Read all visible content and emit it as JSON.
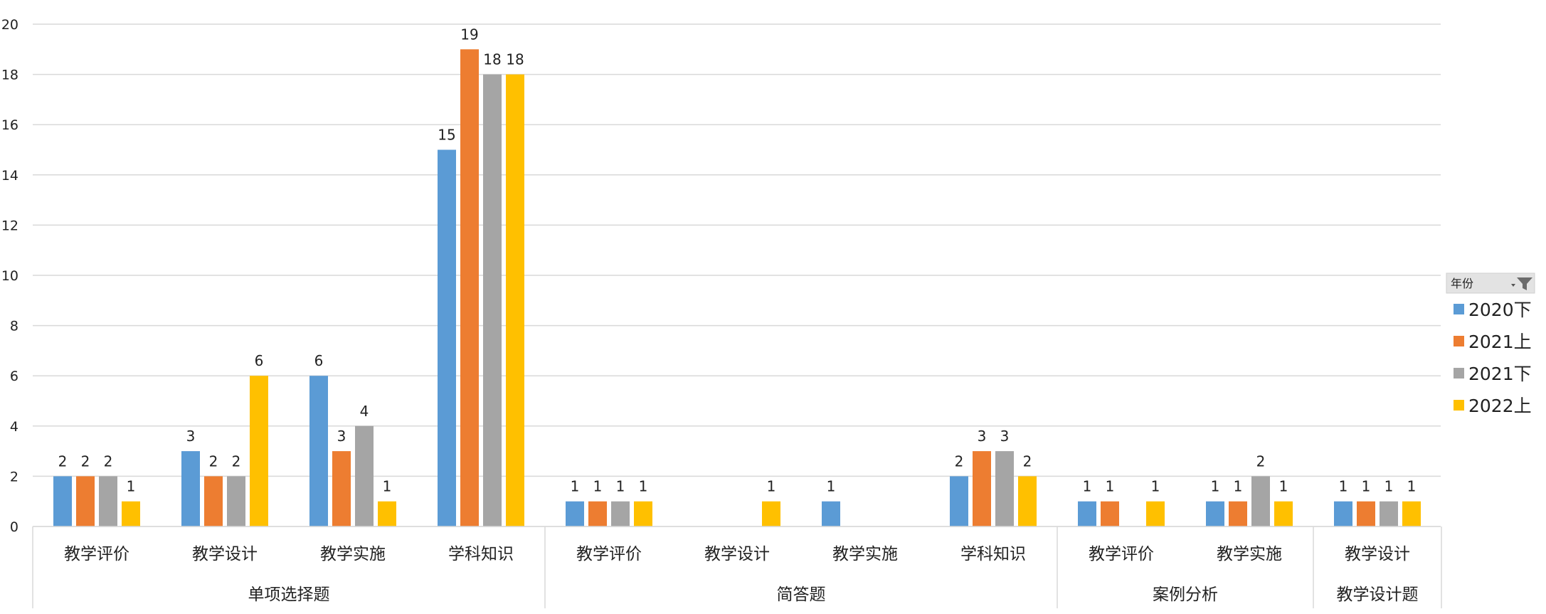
{
  "chart_data": {
    "type": "bar",
    "ylim": [
      0,
      20
    ],
    "yticks": [
      0,
      2,
      4,
      6,
      8,
      10,
      12,
      14,
      16,
      18,
      20
    ],
    "grid": true,
    "legend_position": "right",
    "legend_title": "年份",
    "groups": [
      {
        "name": "单项选择题",
        "categories": [
          "教学评价",
          "教学设计",
          "教学实施",
          "学科知识"
        ]
      },
      {
        "name": "简答题",
        "categories": [
          "教学评价",
          "教学设计",
          "教学实施",
          "学科知识"
        ]
      },
      {
        "name": "案例分析",
        "categories": [
          "教学评价",
          "教学实施"
        ]
      },
      {
        "name": "教学设计题",
        "categories": [
          "教学设计"
        ]
      }
    ],
    "series": [
      {
        "name": "2020下",
        "color": "#5B9BD5",
        "values": [
          2,
          3,
          6,
          15,
          1,
          null,
          1,
          2,
          1,
          1,
          1
        ]
      },
      {
        "name": "2021上",
        "color": "#ED7D31",
        "values": [
          2,
          2,
          3,
          19,
          1,
          null,
          null,
          3,
          1,
          1,
          1
        ]
      },
      {
        "name": "2021下",
        "color": "#A5A5A5",
        "values": [
          2,
          2,
          4,
          18,
          1,
          null,
          null,
          3,
          null,
          2,
          1
        ]
      },
      {
        "name": "2022上",
        "color": "#FFC000",
        "values": [
          1,
          6,
          1,
          18,
          1,
          1,
          null,
          2,
          1,
          1,
          1
        ]
      }
    ]
  }
}
